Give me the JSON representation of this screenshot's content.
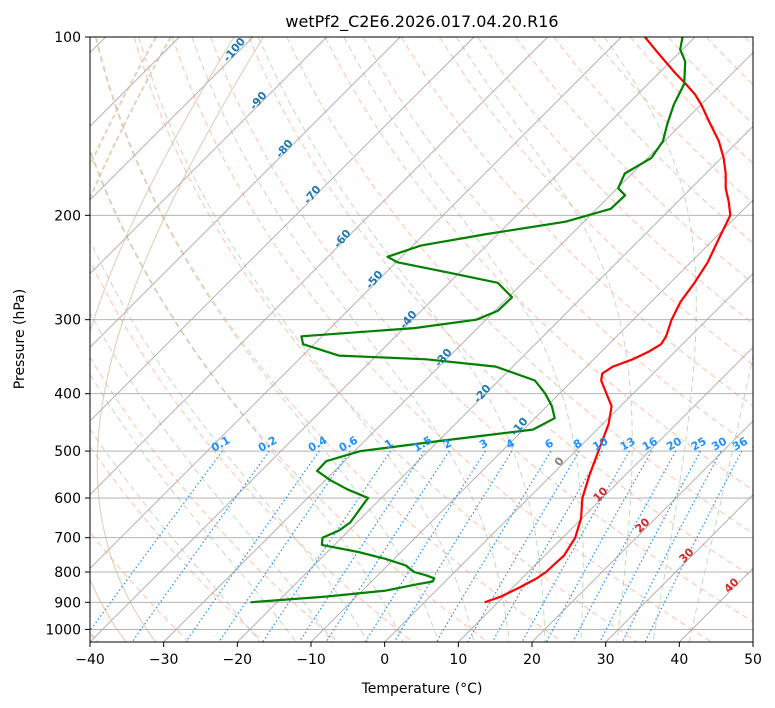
{
  "chart_data": {
    "type": "line",
    "chart_kind": "skew-T log-p diagram",
    "title": "wetPf2_C2E6.2026.017.04.20.R16",
    "xlabel": "Temperature (°C)",
    "ylabel": "Pressure (hPa)",
    "xlim": [
      -40,
      50
    ],
    "ylim": [
      1050,
      100
    ],
    "y_scale": "log",
    "x_ticks": [
      -40,
      -30,
      -20,
      -10,
      0,
      10,
      20,
      30,
      40,
      50
    ],
    "y_ticks": [
      100,
      200,
      300,
      400,
      500,
      600,
      700,
      800,
      900,
      1000
    ],
    "grid": true,
    "colors": {
      "temperature": "#ff0000",
      "dewpoint": "#008000",
      "isotherm": "#a9a9a9",
      "dry_adiabat": "#ff8c69",
      "moist_adiabat": "#8fbc8f",
      "mixing_ratio": "#1e90ff",
      "moist_label": "#1f77b4",
      "dry_label": "#d62728",
      "ccl_mark": "#808080",
      "background_curve": "#d2b48c"
    },
    "series": [
      {
        "role": "temperature",
        "color": "#ff0000",
        "points": [
          [
            900,
            8.2
          ],
          [
            880,
            9.6
          ],
          [
            850,
            10.9
          ],
          [
            820,
            12.0
          ],
          [
            800,
            12.4
          ],
          [
            750,
            12.6
          ],
          [
            700,
            11.7
          ],
          [
            650,
            9.9
          ],
          [
            600,
            7.3
          ],
          [
            550,
            5.2
          ],
          [
            500,
            3.1
          ],
          [
            450,
            0.8
          ],
          [
            420,
            -1.2
          ],
          [
            400,
            -3.6
          ],
          [
            380,
            -6.1
          ],
          [
            370,
            -6.9
          ],
          [
            360,
            -6.4
          ],
          [
            350,
            -4.7
          ],
          [
            340,
            -3.6
          ],
          [
            330,
            -2.9
          ],
          [
            320,
            -3.3
          ],
          [
            300,
            -4.8
          ],
          [
            280,
            -6.0
          ],
          [
            260,
            -6.7
          ],
          [
            240,
            -7.7
          ],
          [
            220,
            -9.3
          ],
          [
            200,
            -11.0
          ],
          [
            190,
            -13.0
          ],
          [
            180,
            -15.3
          ],
          [
            170,
            -17.3
          ],
          [
            160,
            -19.7
          ],
          [
            150,
            -22.6
          ],
          [
            140,
            -26.2
          ],
          [
            130,
            -30.0
          ],
          [
            125,
            -32.2
          ],
          [
            120,
            -34.9
          ],
          [
            115,
            -37.8
          ],
          [
            110,
            -40.7
          ],
          [
            105,
            -43.7
          ],
          [
            100,
            -46.8
          ]
        ]
      },
      {
        "role": "dewpoint",
        "color": "#008000",
        "points": [
          [
            900,
            -23.6
          ],
          [
            880,
            -14.2
          ],
          [
            860,
            -6.8
          ],
          [
            840,
            -3.6
          ],
          [
            830,
            -1.7
          ],
          [
            820,
            -1.9
          ],
          [
            810,
            -3.5
          ],
          [
            800,
            -5.5
          ],
          [
            780,
            -7.5
          ],
          [
            760,
            -11.2
          ],
          [
            740,
            -15.8
          ],
          [
            720,
            -21.7
          ],
          [
            700,
            -22.6
          ],
          [
            680,
            -21.3
          ],
          [
            660,
            -20.9
          ],
          [
            640,
            -21.2
          ],
          [
            620,
            -21.5
          ],
          [
            600,
            -21.8
          ],
          [
            580,
            -25.8
          ],
          [
            560,
            -29.3
          ],
          [
            540,
            -32.4
          ],
          [
            520,
            -32.5
          ],
          [
            500,
            -29.2
          ],
          [
            480,
            -19.5
          ],
          [
            460,
            -8.7
          ],
          [
            440,
            -7.3
          ],
          [
            420,
            -9.3
          ],
          [
            400,
            -11.9
          ],
          [
            380,
            -15.1
          ],
          [
            360,
            -22.3
          ],
          [
            350,
            -32.7
          ],
          [
            345,
            -45.1
          ],
          [
            330,
            -51.5
          ],
          [
            320,
            -52.8
          ],
          [
            310,
            -38.6
          ],
          [
            300,
            -31.3
          ],
          [
            290,
            -29.6
          ],
          [
            275,
            -29.5
          ],
          [
            260,
            -33.4
          ],
          [
            250,
            -41.3
          ],
          [
            240,
            -49.8
          ],
          [
            235,
            -51.9
          ],
          [
            225,
            -48.9
          ],
          [
            215,
            -41.5
          ],
          [
            205,
            -32.5
          ],
          [
            195,
            -28.1
          ],
          [
            185,
            -28.0
          ],
          [
            180,
            -29.9
          ],
          [
            170,
            -31.0
          ],
          [
            160,
            -29.5
          ],
          [
            150,
            -30.2
          ],
          [
            140,
            -32.0
          ],
          [
            130,
            -33.7
          ],
          [
            120,
            -35.1
          ],
          [
            110,
            -38.0
          ],
          [
            105,
            -40.3
          ],
          [
            100,
            -41.7
          ]
        ]
      }
    ],
    "mixing_ratio_labels": [
      "0.1",
      "0.2",
      "0.4",
      "0.6",
      "1",
      "1.5",
      "2",
      "3",
      "4",
      "6",
      "8",
      "10",
      "13",
      "16",
      "20",
      "25",
      "30",
      "36"
    ],
    "moist_adiabat_labels": [
      "-100",
      "-90",
      "-80",
      "-70",
      "-60",
      "-50",
      "-40",
      "-30",
      "-20",
      "-10",
      "0"
    ],
    "dry_adiabat_labels": [
      "10",
      "20",
      "30",
      "40"
    ]
  }
}
